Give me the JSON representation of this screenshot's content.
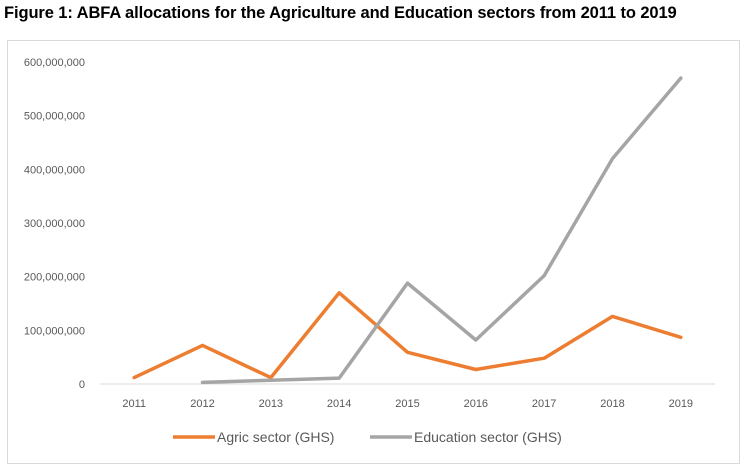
{
  "figure": {
    "title": "Figure 1: ABFA allocations for the Agriculture and Education sectors from 2011 to 2019"
  },
  "chart_data": {
    "type": "line",
    "title": "",
    "xlabel": "",
    "ylabel": "",
    "categories": [
      "2011",
      "2012",
      "2013",
      "2014",
      "2015",
      "2016",
      "2017",
      "2018",
      "2019"
    ],
    "ylim": [
      0,
      600000000
    ],
    "yticks": [
      "0",
      "100,000,000",
      "200,000,000",
      "300,000,000",
      "400,000,000",
      "500,000,000",
      "600,000,000"
    ],
    "ytick_values": [
      0,
      100000000,
      200000000,
      300000000,
      400000000,
      500000000,
      600000000
    ],
    "grid": false,
    "legend_position": "bottom",
    "series": [
      {
        "name": "Agric sector (GHS)",
        "color": "#ed7d31",
        "values": [
          12000000,
          72000000,
          12000000,
          170000000,
          59000000,
          27000000,
          48000000,
          126000000,
          87000000
        ]
      },
      {
        "name": "Education sector (GHS)",
        "color": "#a5a5a5",
        "values": [
          null,
          3000000,
          7000000,
          11000000,
          188000000,
          82000000,
          202000000,
          420000000,
          570000000
        ]
      }
    ]
  }
}
